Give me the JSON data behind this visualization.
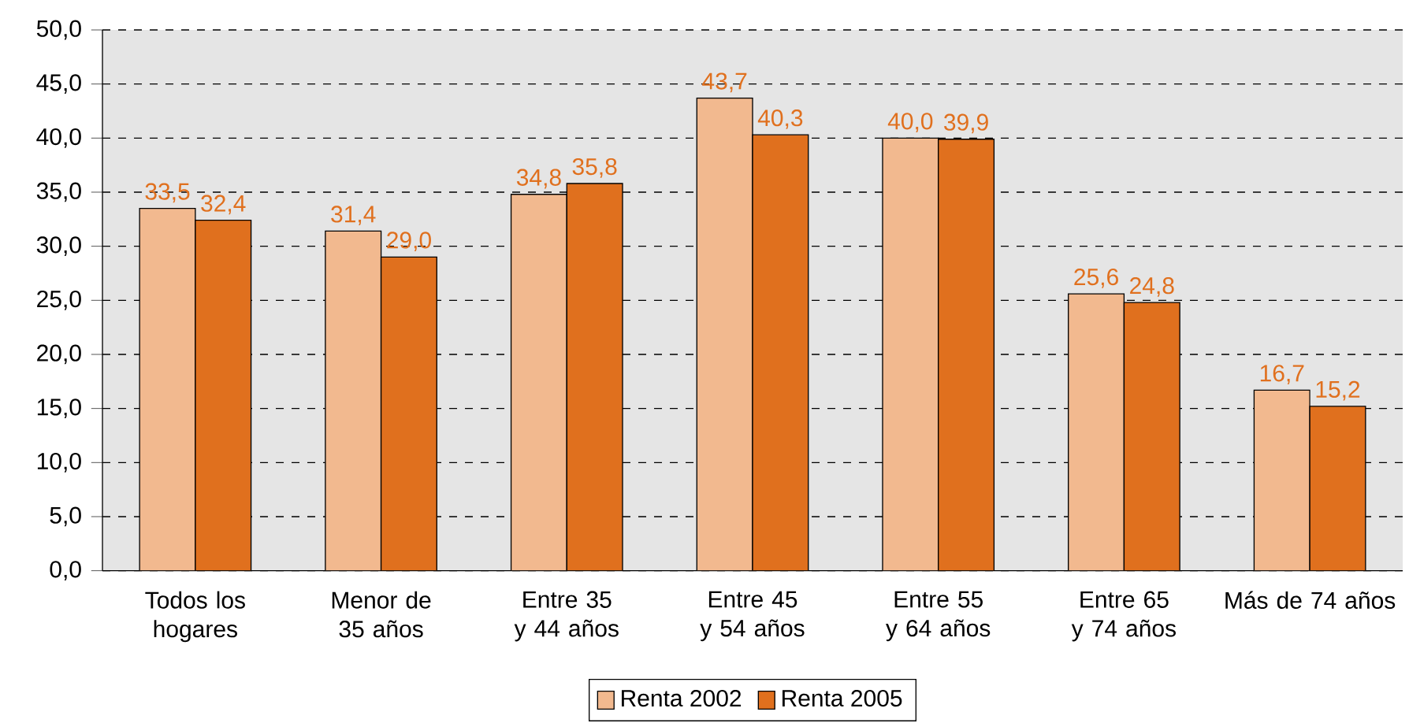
{
  "chart_data": {
    "type": "bar",
    "categories": [
      "Todos los hogares",
      "Menor de 35 años",
      "Entre 35 y 44 años",
      "Entre 45 y 54 años",
      "Entre 55 y 64 años",
      "Entre 65 y 74 años",
      "Más de 74 años"
    ],
    "series": [
      {
        "name": "Renta 2002",
        "color": "#f2b98f",
        "values": [
          33.5,
          31.4,
          34.8,
          43.7,
          40.0,
          25.6,
          16.7
        ],
        "value_labels": [
          "33,5",
          "31,4",
          "34,8",
          "43,7",
          "40,0",
          "25,6",
          "16,7"
        ]
      },
      {
        "name": "Renta 2005",
        "color": "#e0701e",
        "values": [
          32.4,
          29.0,
          35.8,
          40.3,
          39.9,
          24.8,
          15.2
        ],
        "value_labels": [
          "32,4",
          "29,0",
          "35,8",
          "40,3",
          "39,9",
          "24,8",
          "15,2"
        ]
      }
    ],
    "ylim": [
      0,
      50
    ],
    "yticks": [
      {
        "value": 0,
        "label": "0,0"
      },
      {
        "value": 5,
        "label": "5,0"
      },
      {
        "value": 10,
        "label": "10,0"
      },
      {
        "value": 15,
        "label": "15,0"
      },
      {
        "value": 20,
        "label": "20,0"
      },
      {
        "value": 25,
        "label": "25,0"
      },
      {
        "value": 30,
        "label": "30,0"
      },
      {
        "value": 35,
        "label": "35,0"
      },
      {
        "value": 40,
        "label": "40,0"
      },
      {
        "value": 45,
        "label": "45,0"
      },
      {
        "value": 50,
        "label": "50,0"
      }
    ],
    "grid": "y",
    "legend": "bottom"
  }
}
